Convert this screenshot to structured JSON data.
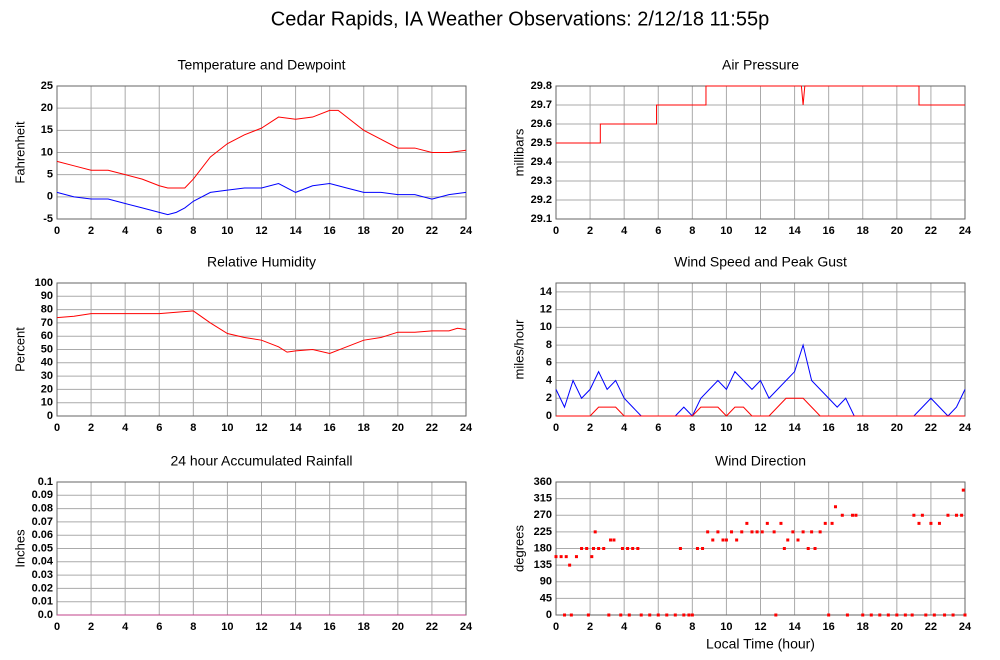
{
  "title": "Cedar Rapids, IA Weather Observations: 2/12/18 11:55p",
  "chart_data": [
    {
      "type": "line",
      "title": "Temperature and Dewpoint",
      "ylabel": "Fahrenheit",
      "x": [
        0,
        1,
        2,
        3,
        4,
        5,
        6,
        6.5,
        7,
        7.5,
        8,
        9,
        10,
        11,
        12,
        13,
        14,
        15,
        16,
        16.5,
        17,
        18,
        19,
        20,
        21,
        22,
        23,
        24
      ],
      "series": [
        {
          "color": "#ff0000",
          "values": [
            8,
            7,
            6,
            6,
            5,
            4,
            2.5,
            2,
            2,
            2,
            4,
            9,
            12,
            14,
            15.5,
            18,
            17.5,
            18,
            19.5,
            19.5,
            18,
            15,
            13,
            11,
            11,
            10,
            10,
            10.5
          ]
        },
        {
          "color": "#0000ff",
          "values": [
            1,
            0,
            -0.5,
            -0.5,
            -1.5,
            -2.5,
            -3.5,
            -4,
            -3.5,
            -2.5,
            -1,
            1,
            1.5,
            2,
            2,
            3,
            1,
            2.5,
            3,
            2.5,
            2,
            1,
            1,
            0.5,
            0.5,
            -0.5,
            0.5,
            1
          ]
        }
      ],
      "xlim": [
        0,
        24
      ],
      "xticks": [
        0,
        2,
        4,
        6,
        8,
        10,
        12,
        14,
        16,
        18,
        20,
        22,
        24
      ],
      "ylim": [
        -5,
        25
      ],
      "yticks": [
        -5,
        0,
        5,
        10,
        15,
        20,
        25
      ],
      "grid": true
    },
    {
      "type": "line",
      "title": "Air Pressure",
      "ylabel": "millibars",
      "x": [
        0,
        2.6,
        2.6,
        5.9,
        5.9,
        8.8,
        8.8,
        14.4,
        14.5,
        14.6,
        21.3,
        21.3,
        24
      ],
      "series": [
        {
          "color": "#ff0000",
          "values": [
            29.5,
            29.5,
            29.6,
            29.6,
            29.7,
            29.7,
            29.8,
            29.8,
            29.7,
            29.8,
            29.8,
            29.7,
            29.7
          ]
        }
      ],
      "xlim": [
        0,
        24
      ],
      "xticks": [
        0,
        2,
        4,
        6,
        8,
        10,
        12,
        14,
        16,
        18,
        20,
        22,
        24
      ],
      "ylim": [
        29.1,
        29.8
      ],
      "yticks": [
        29.1,
        29.2,
        29.3,
        29.4,
        29.5,
        29.6,
        29.7,
        29.8
      ],
      "grid": true
    },
    {
      "type": "line",
      "title": "Relative Humidity",
      "ylabel": "Percent",
      "x": [
        0,
        1,
        2,
        4,
        6,
        7,
        8,
        9,
        10,
        11,
        12,
        13,
        13.5,
        14,
        15,
        16,
        17,
        18,
        19,
        20,
        21,
        22,
        23,
        23.5,
        24
      ],
      "series": [
        {
          "color": "#ff0000",
          "values": [
            74,
            75,
            77,
            77,
            77,
            78,
            79,
            70,
            62,
            59,
            57,
            52,
            48,
            49,
            50,
            47,
            52,
            57,
            59,
            63,
            63,
            64,
            64,
            66,
            65
          ]
        }
      ],
      "xlim": [
        0,
        24
      ],
      "xticks": [
        0,
        2,
        4,
        6,
        8,
        10,
        12,
        14,
        16,
        18,
        20,
        22,
        24
      ],
      "ylim": [
        0,
        100
      ],
      "yticks": [
        0,
        10,
        20,
        30,
        40,
        50,
        60,
        70,
        80,
        90,
        100
      ],
      "grid": true
    },
    {
      "type": "line",
      "title": "Wind Speed and Peak Gust",
      "ylabel": "miles/hour",
      "x": [
        0,
        0.5,
        1,
        1.5,
        2,
        2.5,
        3,
        3.5,
        4,
        4.5,
        5,
        5.5,
        6,
        6.5,
        7,
        7.5,
        8,
        8.5,
        9,
        9.5,
        10,
        10.5,
        11,
        11.5,
        12,
        12.5,
        13,
        13.5,
        14,
        14.5,
        15,
        15.5,
        16,
        16.5,
        17,
        17.5,
        18,
        18.5,
        19,
        19.5,
        20,
        20.5,
        21,
        21.5,
        22,
        22.5,
        23,
        23.5,
        24
      ],
      "series": [
        {
          "color": "#0000ff",
          "values": [
            3,
            1,
            4,
            2,
            3,
            5,
            3,
            4,
            2,
            1,
            0,
            0,
            0,
            0,
            0,
            1,
            0,
            2,
            3,
            4,
            3,
            5,
            4,
            3,
            4,
            2,
            3,
            4,
            5,
            8,
            4,
            3,
            2,
            1,
            2,
            0,
            0,
            0,
            0,
            0,
            0,
            0,
            0,
            1,
            2,
            1,
            0,
            1,
            3
          ]
        },
        {
          "color": "#ff0000",
          "values": [
            0,
            0,
            0,
            0,
            0,
            1,
            1,
            1,
            0,
            0,
            0,
            0,
            0,
            0,
            0,
            0,
            0,
            1,
            1,
            1,
            0,
            1,
            1,
            0,
            0,
            0,
            1,
            2,
            2,
            2,
            1,
            0,
            0,
            0,
            0,
            0,
            0,
            0,
            0,
            0,
            0,
            0,
            0,
            0,
            0,
            0,
            0,
            0,
            0
          ]
        }
      ],
      "xlim": [
        0,
        24
      ],
      "xticks": [
        0,
        2,
        4,
        6,
        8,
        10,
        12,
        14,
        16,
        18,
        20,
        22,
        24
      ],
      "ylim": [
        0,
        15
      ],
      "yticks": [
        0,
        2,
        4,
        6,
        8,
        10,
        12,
        14
      ],
      "grid": true
    },
    {
      "type": "line",
      "title": "24 hour Accumulated Rainfall",
      "ylabel": "Inches",
      "x": [
        0,
        24
      ],
      "series": [
        {
          "color": "#c0408a",
          "values": [
            0,
            0
          ]
        }
      ],
      "xlim": [
        0,
        24
      ],
      "xticks": [
        0,
        2,
        4,
        6,
        8,
        10,
        12,
        14,
        16,
        18,
        20,
        22,
        24
      ],
      "ylim": [
        0,
        0.1
      ],
      "yticks": [
        {
          "value": 0,
          "label": "0.0"
        },
        0.01,
        0.02,
        0.03,
        0.04,
        0.05,
        0.06,
        0.07,
        0.08,
        0.09,
        0.1
      ],
      "grid": true
    },
    {
      "type": "scatter",
      "title": "Wind Direction",
      "ylabel": "degrees",
      "xlabel": "Local Time (hour)",
      "x": [
        0,
        0.3,
        0.6,
        0.8,
        0.5,
        0.9,
        1.2,
        1.5,
        1.8,
        1.9,
        2.1,
        2.2,
        2.3,
        2.5,
        2.8,
        3.1,
        3.2,
        3.4,
        3.8,
        3.9,
        4.2,
        4.5,
        4.8,
        4.3,
        5,
        5.5,
        6,
        6.5,
        7,
        7.3,
        7.5,
        7.8,
        8,
        8.3,
        8.6,
        8.9,
        9.2,
        9.5,
        9.8,
        10,
        10.3,
        10.6,
        10.9,
        11.2,
        11.5,
        11.8,
        12.1,
        12.4,
        12.8,
        12.9,
        13.2,
        13.4,
        13.6,
        13.9,
        14.2,
        14.5,
        14.8,
        15,
        15.2,
        15.5,
        15.8,
        16,
        16.2,
        16.4,
        16.8,
        17.1,
        17.4,
        17.6,
        18,
        18.5,
        19,
        19.5,
        20,
        20.5,
        20.9,
        21,
        21.3,
        21.5,
        21.7,
        22,
        22.2,
        22.5,
        22.8,
        23,
        23.3,
        23.5,
        23.8,
        23.9,
        24
      ],
      "series": [
        {
          "color": "#ff0000",
          "values": [
            158,
            158,
            158,
            135,
            0,
            0,
            158,
            180,
            180,
            0,
            158,
            180,
            225,
            180,
            180,
            0,
            203,
            203,
            0,
            180,
            180,
            180,
            180,
            0,
            0,
            0,
            0,
            0,
            0,
            180,
            0,
            0,
            0,
            180,
            180,
            225,
            203,
            225,
            203,
            203,
            225,
            203,
            225,
            248,
            225,
            225,
            225,
            248,
            225,
            0,
            248,
            180,
            203,
            225,
            203,
            225,
            180,
            225,
            180,
            225,
            248,
            0,
            248,
            293,
            270,
            0,
            270,
            270,
            0,
            0,
            0,
            0,
            0,
            0,
            0,
            270,
            248,
            270,
            0,
            248,
            0,
            248,
            0,
            270,
            0,
            270,
            270,
            338,
            0
          ]
        }
      ],
      "xlim": [
        0,
        24
      ],
      "xticks": [
        0,
        2,
        4,
        6,
        8,
        10,
        12,
        14,
        16,
        18,
        20,
        22,
        24
      ],
      "ylim": [
        0,
        360
      ],
      "yticks": [
        0,
        45,
        90,
        135,
        180,
        225,
        270,
        315,
        360
      ],
      "grid": true
    }
  ]
}
